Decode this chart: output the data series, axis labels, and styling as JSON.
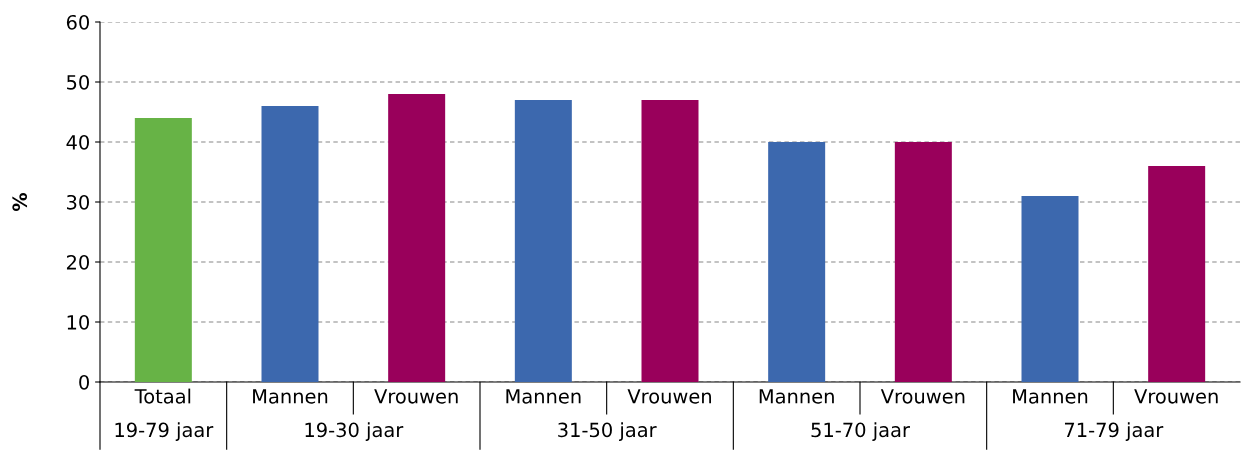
{
  "chart_data": {
    "type": "bar",
    "ylabel": "%",
    "categories": [
      "Totaal",
      "Mannen",
      "Vrouwen",
      "Mannen",
      "Vrouwen",
      "Mannen",
      "Vrouwen",
      "Mannen",
      "Vrouwen"
    ],
    "values": [
      44,
      46,
      48,
      47,
      47,
      40,
      40,
      31,
      36
    ],
    "colors": [
      "#67b346",
      "#3c68ae",
      "#99005b",
      "#3c68ae",
      "#99005b",
      "#3c68ae",
      "#99005b",
      "#3c68ae",
      "#99005b"
    ],
    "ylim": [
      0,
      60
    ],
    "yticks": [
      0,
      10,
      20,
      30,
      40,
      50,
      60
    ],
    "grid": "y",
    "annotations": [
      "19-79 jaar",
      "19-30 jaar",
      "31-50 jaar",
      "51-70 jaar",
      "71-79 jaar"
    ]
  }
}
